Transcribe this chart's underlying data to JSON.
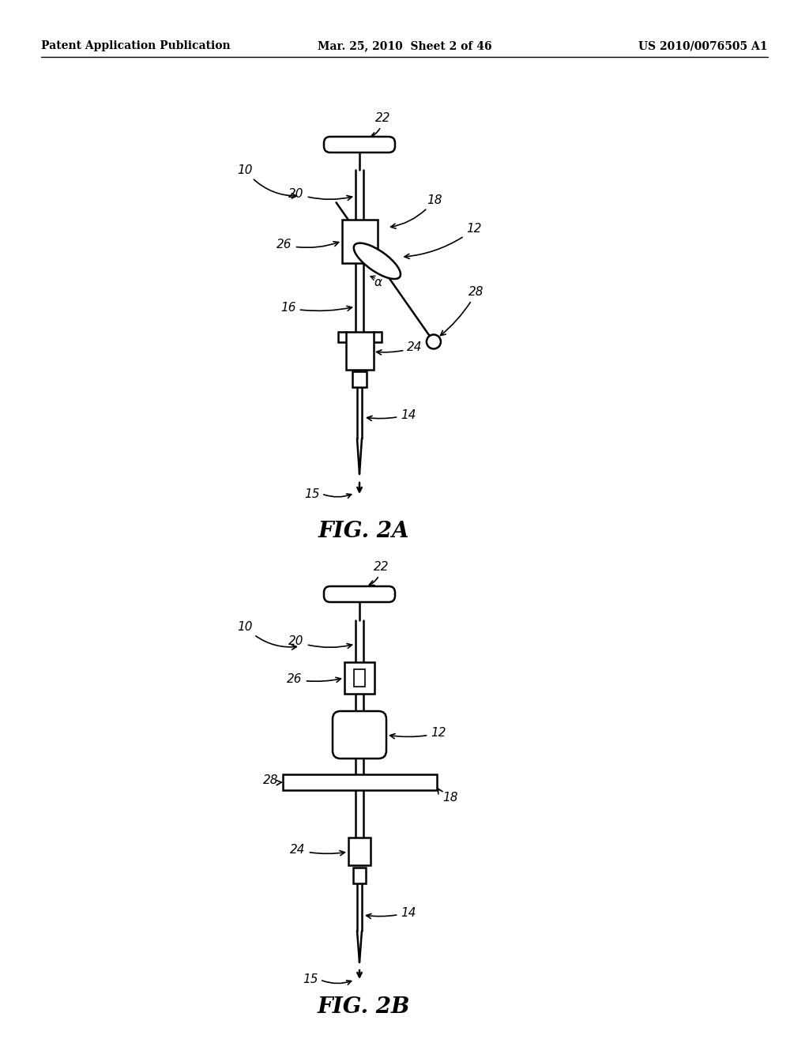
{
  "bg_color": "#ffffff",
  "line_color": "#000000",
  "header_left": "Patent Application Publication",
  "header_mid": "Mar. 25, 2010  Sheet 2 of 46",
  "header_right": "US 2010/0076505 A1",
  "fig2a_label": "FIG. 2A",
  "fig2b_label": "FIG. 2B"
}
